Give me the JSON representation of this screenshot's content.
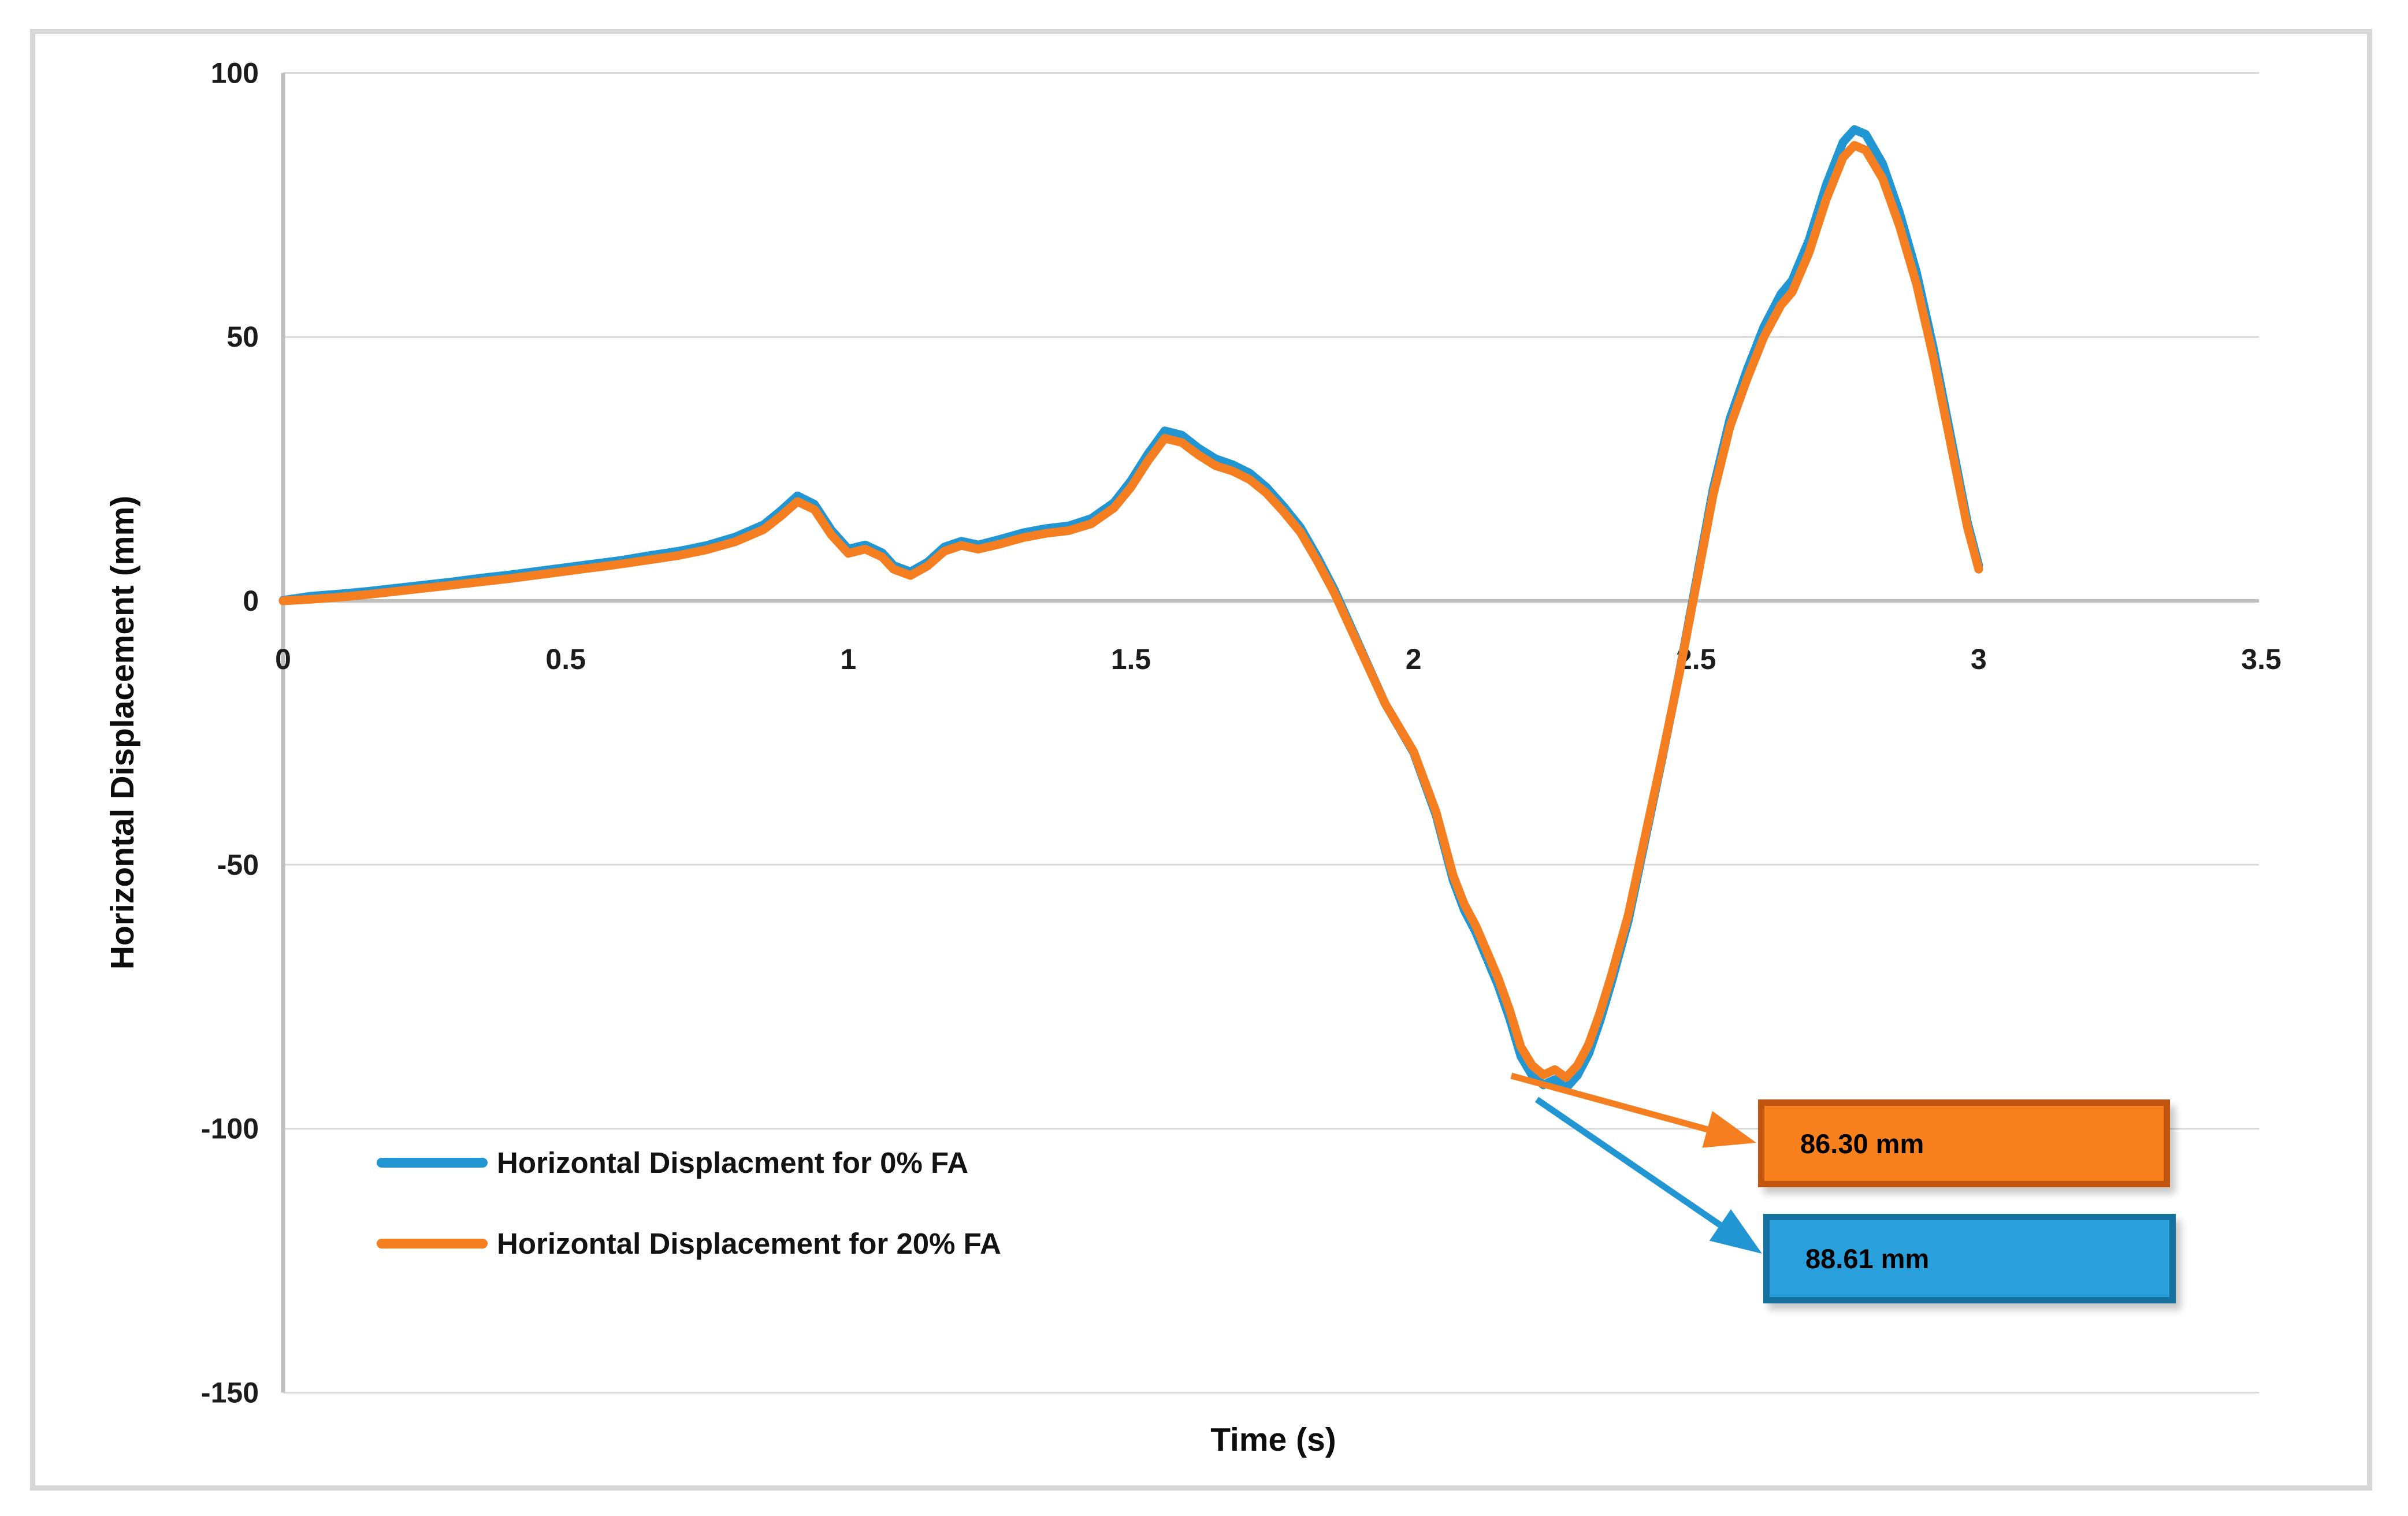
{
  "chart_data": {
    "type": "line",
    "title": "",
    "xlabel": "Time (s)",
    "ylabel": "Horizontal Displacement (mm)",
    "xlim": [
      0,
      3.5
    ],
    "ylim": [
      -150,
      100
    ],
    "grid": "horizontal",
    "gridline_color": "#d9d9d9",
    "axis_line_color": "#bfbfbf",
    "legend_position": "inside-bottom-left",
    "x_ticks": {
      "values": [
        0,
        0.5,
        1,
        1.5,
        2,
        2.5,
        3,
        3.5
      ],
      "labels": [
        "0",
        "0.5",
        "1",
        "1.5",
        "2",
        "2.5",
        "3",
        "3.5"
      ]
    },
    "y_ticks": {
      "values": [
        100,
        50,
        0,
        -50,
        -100,
        -150
      ],
      "labels": [
        "100",
        "50",
        "0",
        "-50",
        "-100",
        "-150"
      ]
    },
    "series": [
      {
        "name": "Horizontal Displacment for 0% FA",
        "color": "#2196d3",
        "points": [
          [
            0.0,
            0.1
          ],
          [
            0.05,
            0.9
          ],
          [
            0.1,
            1.3
          ],
          [
            0.15,
            1.8
          ],
          [
            0.2,
            2.4
          ],
          [
            0.25,
            3.0
          ],
          [
            0.3,
            3.6
          ],
          [
            0.35,
            4.3
          ],
          [
            0.4,
            4.9
          ],
          [
            0.45,
            5.6
          ],
          [
            0.5,
            6.3
          ],
          [
            0.55,
            7.0
          ],
          [
            0.6,
            7.7
          ],
          [
            0.65,
            8.6
          ],
          [
            0.7,
            9.4
          ],
          [
            0.75,
            10.5
          ],
          [
            0.8,
            12.1
          ],
          [
            0.85,
            14.4
          ],
          [
            0.88,
            17.0
          ],
          [
            0.91,
            19.9
          ],
          [
            0.94,
            18.3
          ],
          [
            0.97,
            13.4
          ],
          [
            1.0,
            9.8
          ],
          [
            1.03,
            10.6
          ],
          [
            1.06,
            9.1
          ],
          [
            1.08,
            6.7
          ],
          [
            1.11,
            5.5
          ],
          [
            1.14,
            7.3
          ],
          [
            1.17,
            10.2
          ],
          [
            1.2,
            11.3
          ],
          [
            1.23,
            10.6
          ],
          [
            1.27,
            11.7
          ],
          [
            1.31,
            12.9
          ],
          [
            1.35,
            13.7
          ],
          [
            1.39,
            14.2
          ],
          [
            1.43,
            15.6
          ],
          [
            1.47,
            18.6
          ],
          [
            1.5,
            22.7
          ],
          [
            1.53,
            27.8
          ],
          [
            1.56,
            32.2
          ],
          [
            1.59,
            31.4
          ],
          [
            1.62,
            28.9
          ],
          [
            1.65,
            26.9
          ],
          [
            1.68,
            25.8
          ],
          [
            1.71,
            24.2
          ],
          [
            1.74,
            21.5
          ],
          [
            1.77,
            17.9
          ],
          [
            1.8,
            13.9
          ],
          [
            1.83,
            8.3
          ],
          [
            1.86,
            2.1
          ],
          [
            1.89,
            -5.1
          ],
          [
            1.92,
            -12.3
          ],
          [
            1.95,
            -19.5
          ],
          [
            2.0,
            -28.7
          ],
          [
            2.04,
            -40.6
          ],
          [
            2.07,
            -52.9
          ],
          [
            2.09,
            -58.6
          ],
          [
            2.11,
            -62.7
          ],
          [
            2.13,
            -67.8
          ],
          [
            2.15,
            -72.9
          ],
          [
            2.17,
            -79.1
          ],
          [
            2.19,
            -86.3
          ],
          [
            2.21,
            -89.9
          ],
          [
            2.23,
            -91.7
          ],
          [
            2.25,
            -90.7
          ],
          [
            2.27,
            -92.3
          ],
          [
            2.29,
            -89.9
          ],
          [
            2.31,
            -85.8
          ],
          [
            2.33,
            -79.6
          ],
          [
            2.35,
            -72.4
          ],
          [
            2.38,
            -60.6
          ],
          [
            2.41,
            -45.2
          ],
          [
            2.44,
            -29.8
          ],
          [
            2.47,
            -13.8
          ],
          [
            2.5,
            3.6
          ],
          [
            2.53,
            21.1
          ],
          [
            2.56,
            34.5
          ],
          [
            2.59,
            43.7
          ],
          [
            2.62,
            51.9
          ],
          [
            2.65,
            58.1
          ],
          [
            2.67,
            60.7
          ],
          [
            2.7,
            68.4
          ],
          [
            2.73,
            78.7
          ],
          [
            2.76,
            86.9
          ],
          [
            2.78,
            89.3
          ],
          [
            2.8,
            88.4
          ],
          [
            2.83,
            82.8
          ],
          [
            2.86,
            73.5
          ],
          [
            2.89,
            62.2
          ],
          [
            2.92,
            47.8
          ],
          [
            2.95,
            31.4
          ],
          [
            2.98,
            14.9
          ],
          [
            3.0,
            6.7
          ]
        ]
      },
      {
        "name": "Horizontal Displacement for 20% FA",
        "color": "#f57e20",
        "points": [
          [
            0.0,
            0.0
          ],
          [
            0.05,
            0.3
          ],
          [
            0.1,
            0.7
          ],
          [
            0.15,
            1.2
          ],
          [
            0.2,
            1.8
          ],
          [
            0.25,
            2.4
          ],
          [
            0.3,
            3.0
          ],
          [
            0.35,
            3.6
          ],
          [
            0.4,
            4.2
          ],
          [
            0.45,
            4.9
          ],
          [
            0.5,
            5.6
          ],
          [
            0.55,
            6.3
          ],
          [
            0.6,
            7.0
          ],
          [
            0.65,
            7.8
          ],
          [
            0.7,
            8.6
          ],
          [
            0.75,
            9.7
          ],
          [
            0.8,
            11.2
          ],
          [
            0.85,
            13.5
          ],
          [
            0.88,
            16.0
          ],
          [
            0.91,
            18.8
          ],
          [
            0.94,
            17.3
          ],
          [
            0.97,
            12.5
          ],
          [
            1.0,
            9.0
          ],
          [
            1.03,
            9.8
          ],
          [
            1.06,
            8.3
          ],
          [
            1.08,
            6.0
          ],
          [
            1.11,
            4.8
          ],
          [
            1.14,
            6.6
          ],
          [
            1.17,
            9.4
          ],
          [
            1.2,
            10.5
          ],
          [
            1.23,
            9.8
          ],
          [
            1.27,
            10.8
          ],
          [
            1.31,
            12.0
          ],
          [
            1.35,
            12.8
          ],
          [
            1.39,
            13.3
          ],
          [
            1.43,
            14.6
          ],
          [
            1.47,
            17.6
          ],
          [
            1.5,
            21.5
          ],
          [
            1.53,
            26.5
          ],
          [
            1.56,
            30.8
          ],
          [
            1.59,
            30.0
          ],
          [
            1.62,
            27.6
          ],
          [
            1.65,
            25.6
          ],
          [
            1.68,
            24.6
          ],
          [
            1.71,
            23.0
          ],
          [
            1.74,
            20.4
          ],
          [
            1.77,
            16.9
          ],
          [
            1.8,
            13.0
          ],
          [
            1.83,
            7.5
          ],
          [
            1.86,
            1.5
          ],
          [
            1.89,
            -5.5
          ],
          [
            1.92,
            -12.5
          ],
          [
            1.95,
            -19.5
          ],
          [
            2.0,
            -28.5
          ],
          [
            2.04,
            -40.0
          ],
          [
            2.07,
            -52.0
          ],
          [
            2.09,
            -57.5
          ],
          [
            2.11,
            -61.5
          ],
          [
            2.13,
            -66.5
          ],
          [
            2.15,
            -71.5
          ],
          [
            2.17,
            -77.5
          ],
          [
            2.19,
            -84.5
          ],
          [
            2.21,
            -88.0
          ],
          [
            2.23,
            -89.8
          ],
          [
            2.25,
            -88.8
          ],
          [
            2.27,
            -90.3
          ],
          [
            2.29,
            -88.0
          ],
          [
            2.31,
            -84.0
          ],
          [
            2.33,
            -78.0
          ],
          [
            2.35,
            -71.0
          ],
          [
            2.38,
            -59.5
          ],
          [
            2.41,
            -44.5
          ],
          [
            2.44,
            -29.5
          ],
          [
            2.47,
            -14.0
          ],
          [
            2.5,
            3.0
          ],
          [
            2.53,
            20.0
          ],
          [
            2.56,
            33.0
          ],
          [
            2.59,
            42.0
          ],
          [
            2.62,
            50.0
          ],
          [
            2.65,
            56.0
          ],
          [
            2.67,
            58.5
          ],
          [
            2.7,
            66.0
          ],
          [
            2.73,
            76.0
          ],
          [
            2.76,
            84.0
          ],
          [
            2.78,
            86.3
          ],
          [
            2.8,
            85.4
          ],
          [
            2.83,
            80.0
          ],
          [
            2.86,
            71.0
          ],
          [
            2.89,
            60.0
          ],
          [
            2.92,
            46.0
          ],
          [
            2.95,
            30.0
          ],
          [
            2.98,
            14.0
          ],
          [
            3.0,
            6.0
          ]
        ]
      }
    ],
    "annotations": [
      {
        "label": "86.30 mm",
        "series": "Horizontal Displacement for 20% FA",
        "box_fill": "#f8811e",
        "box_border": "#c1540e",
        "arrow_color": "#f57e20"
      },
      {
        "label": "88.61 mm",
        "series": "Horizontal Displacment for 0% FA",
        "box_fill": "#29a0dc",
        "box_border": "#17719e",
        "arrow_color": "#2196d3"
      }
    ]
  }
}
